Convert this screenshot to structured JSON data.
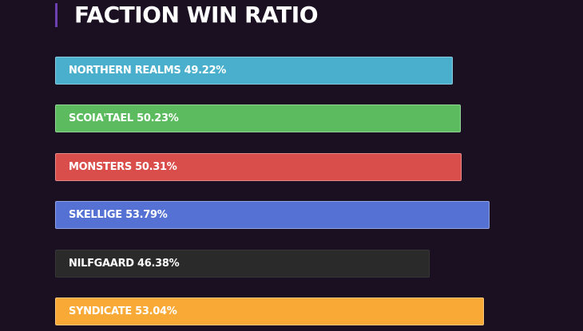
{
  "header": {
    "title": "FACTION WIN RATIO"
  },
  "chart_data": {
    "type": "bar",
    "orientation": "horizontal",
    "title": "FACTION WIN RATIO",
    "categories": [
      "NORTHERN REALMS",
      "SCOIA'TAEL",
      "MONSTERS",
      "SKELLIGE",
      "NILFGAARD",
      "SYNDICATE"
    ],
    "values": [
      49.22,
      50.23,
      50.31,
      53.79,
      46.38,
      53.04
    ],
    "labels": [
      "NORTHERN REALMS 49.22%",
      "SCOIA'TAEL 50.23%",
      "MONSTERS 50.31%",
      "SKELLIGE 53.79%",
      "NILFGAARD 46.38%",
      "SYNDICATE 53.04%"
    ],
    "colors": [
      "#4aafcc",
      "#5cbb5f",
      "#d94d4b",
      "#5571d3",
      "#2a2a2a",
      "#f9a935"
    ],
    "xlabel": "",
    "ylabel": "",
    "unit": "%",
    "grid": false,
    "legend": "none"
  }
}
